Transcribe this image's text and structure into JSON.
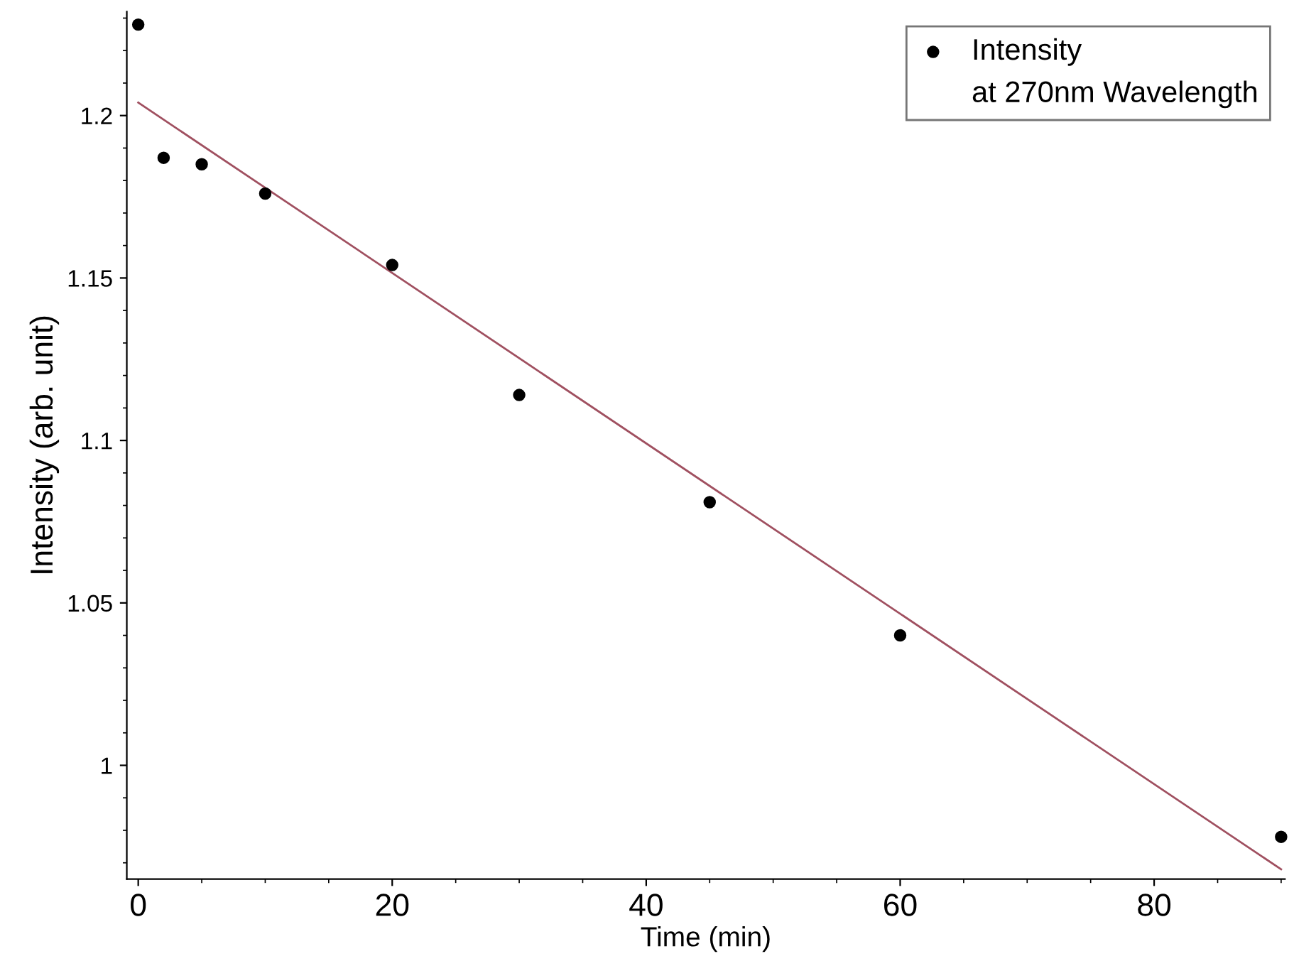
{
  "chart_data": {
    "type": "scatter",
    "xlabel": "Time (min)",
    "ylabel": "Intensity (arb. unit)",
    "xlim": [
      -0.9,
      90.3
    ],
    "ylim": [
      0.965,
      1.232
    ],
    "xticks": [
      0,
      20,
      40,
      60,
      80
    ],
    "yticks": [
      1,
      1.05,
      1.1,
      1.15,
      1.2
    ],
    "grid": false,
    "legend": "top right",
    "annotations": [
      "at 270nm Wavelength"
    ],
    "series": [
      {
        "name": "Intensity",
        "marker": "circle",
        "color": "#000000",
        "x": [
          0,
          2,
          5,
          10,
          20,
          30,
          45,
          60,
          90
        ],
        "values": [
          1.228,
          1.187,
          1.185,
          1.176,
          1.154,
          1.114,
          1.081,
          1.04,
          0.978
        ]
      },
      {
        "type": "line",
        "marker": "none",
        "color": "#a05060",
        "line_style": "solid",
        "x": [
          0,
          90
        ],
        "values": [
          1.204,
          0.968
        ]
      }
    ]
  }
}
